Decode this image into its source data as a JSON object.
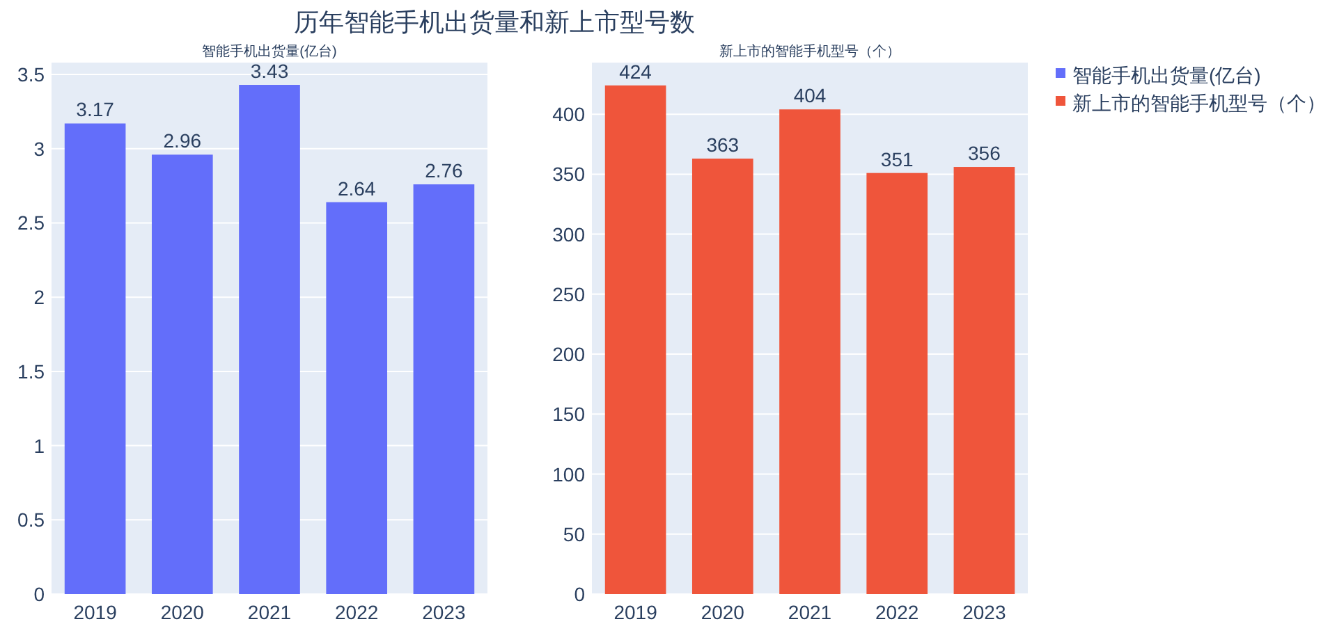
{
  "chart_data": [
    {
      "type": "bar",
      "title": "历年智能手机出货量和新上市型号数",
      "subtitle": "智能手机出货量(亿台)",
      "categories": [
        "2019",
        "2020",
        "2021",
        "2022",
        "2023"
      ],
      "series": [
        {
          "name": "智能手机出货量(亿台)",
          "color": "#636efa",
          "values": [
            3.17,
            2.96,
            3.43,
            2.64,
            2.76
          ]
        }
      ],
      "ylim": [
        0,
        3.58
      ],
      "yticks": [
        0,
        {
          "value": 0.5,
          "label": "0.5"
        },
        1,
        {
          "value": 1.5,
          "label": "1.5"
        },
        2,
        {
          "value": 2.5,
          "label": "2.5"
        },
        3,
        {
          "value": 3.5,
          "label": "3.5"
        }
      ],
      "grid": "y",
      "data_labels": true,
      "legend": "right"
    },
    {
      "type": "bar",
      "subtitle": "新上市的智能手机型号（个）",
      "categories": [
        "2019",
        "2020",
        "2021",
        "2022",
        "2023"
      ],
      "series": [
        {
          "name": "新上市的智能手机型号（个）",
          "color": "#ef553b",
          "values": [
            424,
            363,
            404,
            351,
            356
          ]
        }
      ],
      "ylim": [
        0,
        443
      ],
      "yticks": [
        0,
        50,
        100,
        150,
        200,
        250,
        300,
        350,
        400
      ],
      "grid": "y",
      "data_labels": true,
      "legend": "right"
    }
  ]
}
